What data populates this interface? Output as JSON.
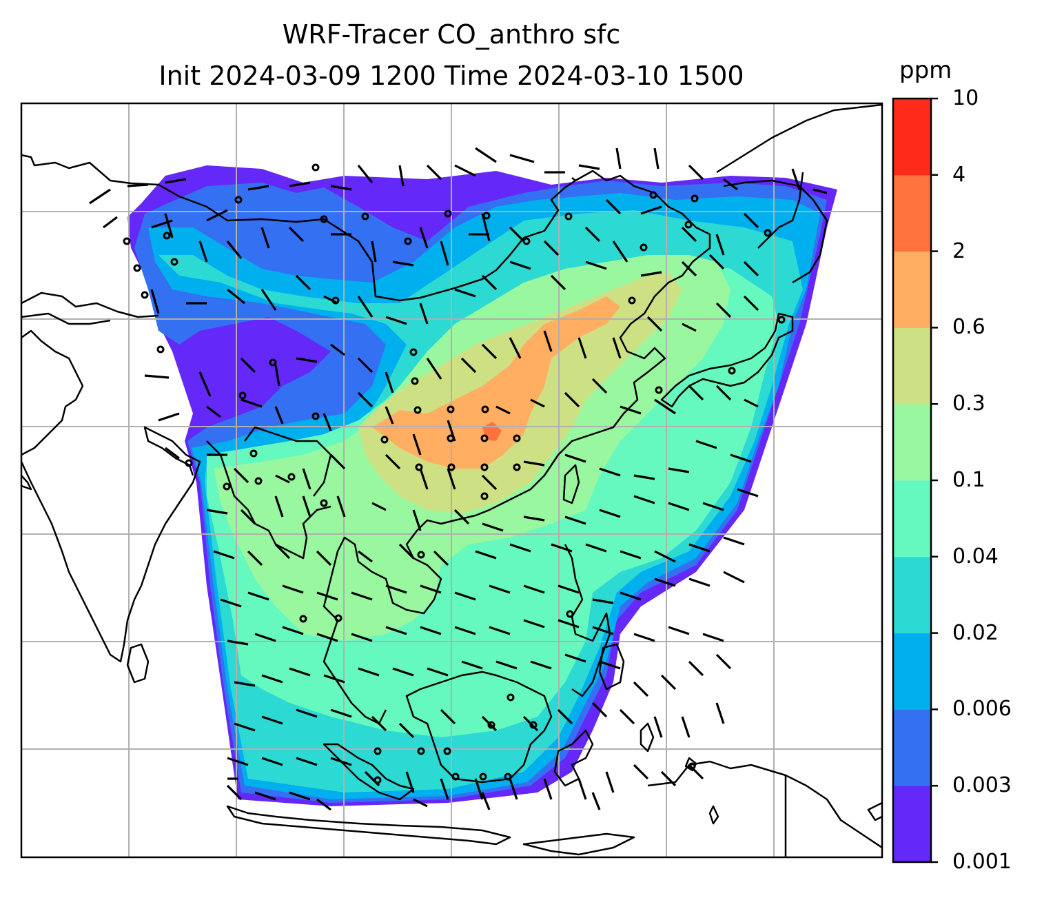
{
  "title_line1": "WRF-Tracer CO_anthro sfc",
  "title_line2": "Init 2024-03-09 1200 Time 2024-03-10 1500",
  "colorbar": {
    "unit": "ppm",
    "ticks": [
      "0.001",
      "0.003",
      "0.006",
      "0.02",
      "0.04",
      "0.1",
      "0.3",
      "0.6",
      "2",
      "4",
      "10"
    ],
    "colors": [
      "#6428f8",
      "#3370f2",
      "#00b0ee",
      "#2cdad3",
      "#66f9bf",
      "#98f79f",
      "#cde184",
      "#ffae62",
      "#ff723d",
      "#ff2b1a"
    ]
  },
  "map": {
    "field": "CO_anthro",
    "level": "sfc",
    "gridline_color": "#b0b0b0",
    "coastline_color": "#000000"
  }
}
